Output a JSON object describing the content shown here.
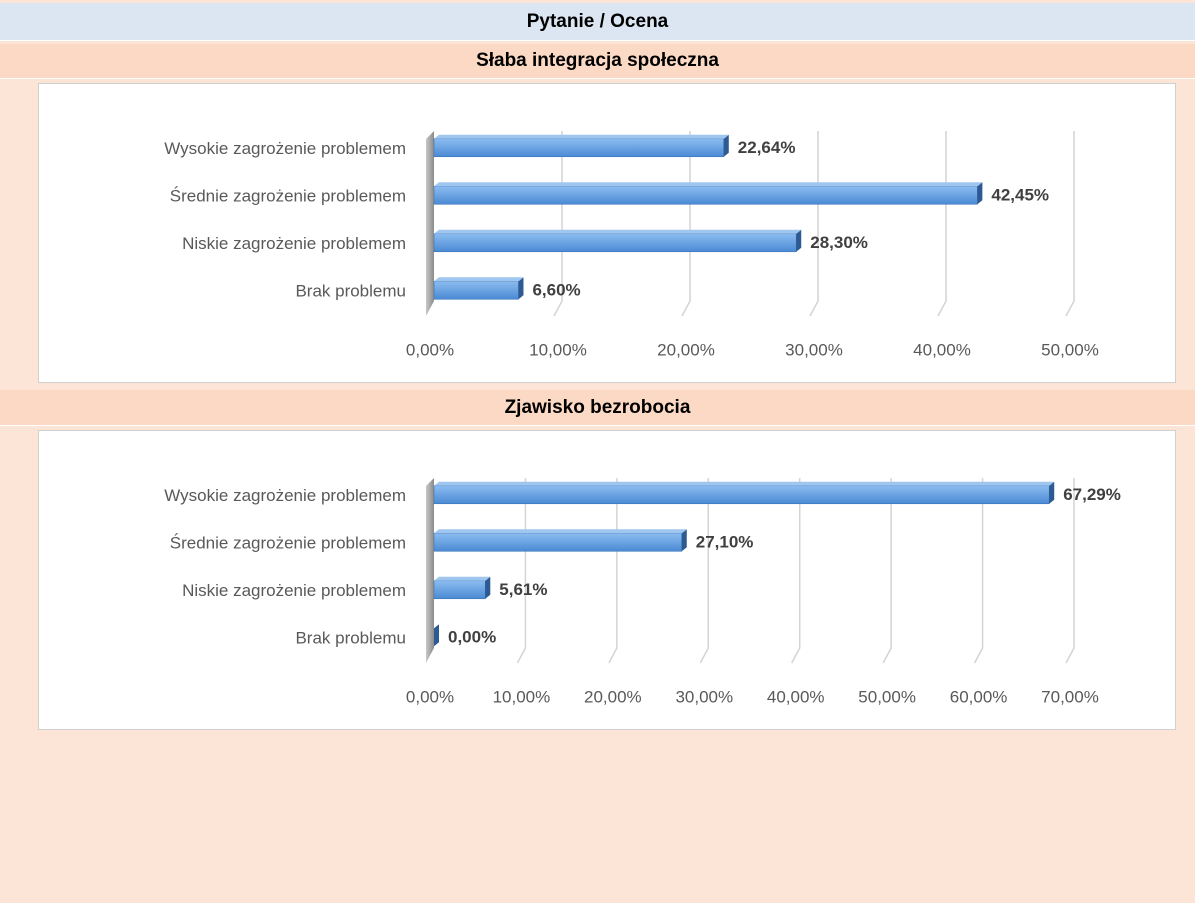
{
  "header": {
    "title": "Pytanie / Ocena"
  },
  "chart_data": [
    {
      "type": "bar",
      "title": "Słaba integracja społeczna",
      "categories": [
        "Wysokie zagrożenie problemem",
        "Średnie zagrożenie problemem",
        "Niskie zagrożenie problemem",
        "Brak problemu"
      ],
      "values": [
        22.64,
        42.45,
        28.3,
        6.6
      ],
      "value_labels": [
        "22,64%",
        "42,45%",
        "28,30%",
        "6,60%"
      ],
      "color": "#4a8ad4",
      "xlim": [
        0,
        50
      ],
      "xticks": [
        {
          "value": 0,
          "label": "0,00%"
        },
        {
          "value": 10,
          "label": "10,00%"
        },
        {
          "value": 20,
          "label": "20,00%"
        },
        {
          "value": 30,
          "label": "30,00%"
        },
        {
          "value": 40,
          "label": "40,00%"
        },
        {
          "value": 50,
          "label": "50,00%"
        }
      ],
      "grid": true
    },
    {
      "type": "bar",
      "title": "Zjawisko bezrobocia",
      "categories": [
        "Wysokie zagrożenie problemem",
        "Średnie zagrożenie problemem",
        "Niskie zagrożenie problemem",
        "Brak problemu"
      ],
      "values": [
        67.29,
        27.1,
        5.61,
        0
      ],
      "value_labels": [
        "67,29%",
        "27,10%",
        "5,61%",
        "0,00%"
      ],
      "color": "#4a8ad4",
      "xlim": [
        0,
        70
      ],
      "xticks": [
        {
          "value": 0,
          "label": "0,00%"
        },
        {
          "value": 10,
          "label": "10,00%"
        },
        {
          "value": 20,
          "label": "20,00%"
        },
        {
          "value": 30,
          "label": "30,00%"
        },
        {
          "value": 40,
          "label": "40,00%"
        },
        {
          "value": 50,
          "label": "50,00%"
        },
        {
          "value": 60,
          "label": "60,00%"
        },
        {
          "value": 70,
          "label": "70,00%"
        }
      ],
      "grid": true
    }
  ]
}
